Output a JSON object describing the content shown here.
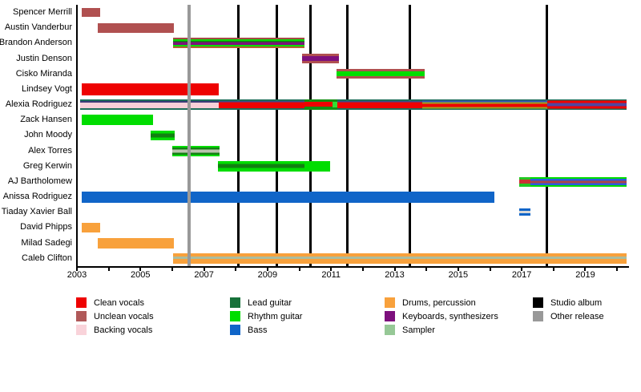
{
  "chart_data": {
    "type": "timeline",
    "x_axis": {
      "start": 2003.0,
      "end": 2020.35,
      "tick_years": [
        2003,
        2004,
        2005,
        2006,
        2007,
        2008,
        2009,
        2010,
        2011,
        2012,
        2013,
        2014,
        2015,
        2016,
        2017,
        2018,
        2019,
        2020
      ],
      "label_years": [
        2003,
        2005,
        2007,
        2009,
        2011,
        2013,
        2015,
        2017,
        2019
      ]
    },
    "members": [
      {
        "name": "Spencer Merrill",
        "bars": [
          {
            "start": 2003.15,
            "end": 2003.73,
            "h": 11,
            "stripes": [
              [
                "#b05050",
                1
              ]
            ]
          }
        ]
      },
      {
        "name": "Austin Vanderbur",
        "bars": [
          {
            "start": 2003.66,
            "end": 2006.05,
            "h": 12,
            "stripes": [
              [
                "#b05050",
                1
              ]
            ]
          }
        ]
      },
      {
        "name": "Brandon Anderson",
        "bars": [
          {
            "start": 2006.03,
            "end": 2010.16,
            "h": 13,
            "stripes": [
              [
                "#a34c44",
                2
              ],
              [
                "#00dd00",
                2.5
              ],
              [
                "#128012",
                1.5
              ],
              [
                "#7d107d",
                4
              ],
              [
                "#00dd00",
                2.5
              ],
              [
                "#b26336",
                2
              ]
            ]
          }
        ]
      },
      {
        "name": "Justin Denson",
        "bars": [
          {
            "start": 2010.09,
            "end": 2011.25,
            "h": 12,
            "stripes": [
              [
                "#b05050",
                3
              ],
              [
                "#7d107d",
                6
              ],
              [
                "#b05050",
                3
              ]
            ]
          }
        ]
      },
      {
        "name": "Cisko Miranda",
        "bars": [
          {
            "start": 2011.17,
            "end": 2013.95,
            "h": 12,
            "stripes": [
              [
                "#b05050",
                3
              ],
              [
                "#00dd00",
                7
              ],
              [
                "#b05050",
                3
              ]
            ]
          }
        ]
      },
      {
        "name": "Lindsey Vogt",
        "bars": [
          {
            "start": 2003.15,
            "end": 2007.46,
            "h": 15,
            "stripes": [
              [
                "#ee0202",
                1
              ]
            ]
          }
        ]
      },
      {
        "name": "Alexia Rodriguez",
        "bars": [
          {
            "start": 2003.1,
            "end": 2007.46,
            "h": 13,
            "stripes": [
              [
                "#1d6e5a",
                2
              ],
              [
                "#3c3c78",
                2
              ],
              [
                "#f9cfd8",
                7
              ],
              [
                "#1d6e5a",
                2
              ]
            ]
          },
          {
            "start": 2007.46,
            "end": 2010.16,
            "h": 13,
            "stripes": [
              [
                "#1d6e5a",
                2
              ],
              [
                "#3c4c8c",
                1.5
              ],
              [
                "#ee0202",
                7.5
              ],
              [
                "#1d6e5a",
                2
              ]
            ]
          },
          {
            "start": 2010.16,
            "end": 2011.05,
            "h": 13,
            "stripes": [
              [
                "#129012",
                3
              ],
              [
                "#ee0202",
                6
              ],
              [
                "#129012",
                4
              ]
            ]
          },
          {
            "start": 2011.05,
            "end": 2011.2,
            "h": 13,
            "stripes": [
              [
                "#129012",
                3
              ],
              [
                "#33dd33",
                7
              ],
              [
                "#129012",
                3
              ]
            ]
          },
          {
            "start": 2011.2,
            "end": 2013.87,
            "h": 13,
            "stripes": [
              [
                "#1d6e5a",
                2
              ],
              [
                "#3c4c8c",
                1.5
              ],
              [
                "#ee0202",
                7.5
              ],
              [
                "#1d6e5a",
                2
              ]
            ]
          },
          {
            "start": 2013.87,
            "end": 2017.8,
            "h": 13,
            "stripes": [
              [
                "#1d6e5a",
                1.5
              ],
              [
                "#3355bb",
                2
              ],
              [
                "#a3a31c",
                2
              ],
              [
                "#ee0202",
                4
              ],
              [
                "#a3a31c",
                2
              ],
              [
                "#1d6e5a",
                1.5
              ]
            ]
          },
          {
            "start": 2017.8,
            "end": 2020.3,
            "h": 13,
            "stripes": [
              [
                "#1d6e5a",
                1.5
              ],
              [
                "#ee0202",
                3
              ],
              [
                "#4f46a0",
                4
              ],
              [
                "#ee0202",
                3
              ],
              [
                "#1d6e5a",
                1.5
              ]
            ]
          }
        ]
      },
      {
        "name": "Zack Hansen",
        "bars": [
          {
            "start": 2003.15,
            "end": 2005.39,
            "h": 13,
            "stripes": [
              [
                "#00dd00",
                1
              ]
            ]
          }
        ]
      },
      {
        "name": "John Moody",
        "bars": [
          {
            "start": 2005.32,
            "end": 2006.08,
            "h": 12,
            "stripes": [
              [
                "#00dd00",
                3.5
              ],
              [
                "#128012",
                5
              ],
              [
                "#00dd00",
                3.5
              ]
            ]
          }
        ]
      },
      {
        "name": "Alex Torres",
        "bars": [
          {
            "start": 2006.0,
            "end": 2007.49,
            "h": 13,
            "stripes": [
              [
                "#00dd00",
                2
              ],
              [
                "#128012",
                2.5
              ],
              [
                "#b9c4ae",
                4
              ],
              [
                "#128012",
                2.5
              ],
              [
                "#00dd00",
                2
              ]
            ]
          }
        ]
      },
      {
        "name": "Greg Kerwin",
        "bars": [
          {
            "start": 2007.44,
            "end": 2010.16,
            "h": 13,
            "stripes": [
              [
                "#00dd00",
                3.5
              ],
              [
                "#128012",
                5
              ],
              [
                "#00dd00",
                4.5
              ]
            ]
          },
          {
            "start": 2010.16,
            "end": 2010.97,
            "h": 13,
            "stripes": [
              [
                "#00dd00",
                1
              ]
            ]
          }
        ]
      },
      {
        "name": "AJ Bartholomew",
        "bars": [
          {
            "start": 2016.92,
            "end": 2017.27,
            "h": 12,
            "stripes": [
              [
                "#22c822",
                3
              ],
              [
                "#cc3333",
                5
              ],
              [
                "#22c822",
                4
              ]
            ]
          },
          {
            "start": 2017.27,
            "end": 2020.3,
            "h": 12,
            "stripes": [
              [
                "#00dd00",
                2.5
              ],
              [
                "#2a5adf",
                2.5
              ],
              [
                "#a94848",
                4
              ],
              [
                "#2a5adf",
                2.5
              ],
              [
                "#00dd00",
                2.5
              ]
            ]
          }
        ]
      },
      {
        "name": "Anissa Rodriguez",
        "bars": [
          {
            "start": 2003.15,
            "end": 2016.14,
            "h": 14,
            "stripes": [
              [
                "#1065c8",
                1
              ]
            ]
          }
        ]
      },
      {
        "name": "Tiaday Xavier Ball",
        "bars": [
          {
            "start": 2016.92,
            "end": 2017.27,
            "h": 9,
            "stripes": [
              [
                "#1065c8",
                3
              ],
              [
                "#d8d8d8",
                2.5
              ],
              [
                "#1065c8",
                3
              ]
            ]
          }
        ]
      },
      {
        "name": "David Phipps",
        "bars": [
          {
            "start": 2003.15,
            "end": 2003.73,
            "h": 12,
            "stripes": [
              [
                "#f8a13c",
                1
              ]
            ]
          }
        ]
      },
      {
        "name": "Milad Sadegi",
        "bars": [
          {
            "start": 2003.66,
            "end": 2006.05,
            "h": 13,
            "stripes": [
              [
                "#f8a13c",
                1
              ]
            ]
          }
        ]
      },
      {
        "name": "Caleb Clifton",
        "bars": [
          {
            "start": 2006.03,
            "end": 2020.3,
            "h": 13,
            "stripes": [
              [
                "#f8a13c",
                4
              ],
              [
                "#a9bda1",
                3
              ],
              [
                "#f8a13c",
                6
              ]
            ]
          }
        ]
      }
    ],
    "event_lines": [
      {
        "year": 2006.53,
        "kind": "other-release",
        "color": "#999999"
      },
      {
        "year": 2008.07,
        "kind": "studio-album",
        "color": "#000000"
      },
      {
        "year": 2009.28,
        "kind": "studio-album",
        "color": "#000000"
      },
      {
        "year": 2010.34,
        "kind": "studio-album",
        "color": "#000000"
      },
      {
        "year": 2011.5,
        "kind": "studio-album",
        "color": "#000000"
      },
      {
        "year": 2013.47,
        "kind": "studio-album",
        "color": "#000000"
      },
      {
        "year": 2017.8,
        "kind": "studio-album",
        "color": "#000000"
      }
    ],
    "legend": {
      "columns": [
        {
          "items": [
            {
              "label": "Clean vocals",
              "color": "#ee0202"
            },
            {
              "label": "Unclean vocals",
              "color": "#b05959"
            },
            {
              "label": "Backing vocals",
              "color": "#f9d3da"
            }
          ]
        },
        {
          "items": [
            {
              "label": "Lead guitar",
              "color": "#17713a"
            },
            {
              "label": "Rhythm guitar",
              "color": "#00dd00"
            },
            {
              "label": "Bass",
              "color": "#1065c8"
            }
          ]
        },
        {
          "items": [
            {
              "label": "Drums, percussion",
              "color": "#f8a13c"
            },
            {
              "label": "Keyboards, synthesizers",
              "color": "#7d107d"
            },
            {
              "label": "Sampler",
              "color": "#96c896"
            }
          ]
        },
        {
          "items": [
            {
              "label": "Studio album",
              "color": "#000000"
            },
            {
              "label": "Other release",
              "color": "#999999"
            }
          ]
        }
      ]
    }
  }
}
